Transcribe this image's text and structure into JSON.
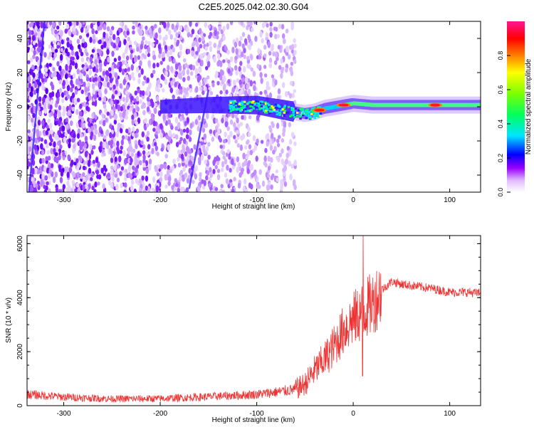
{
  "title": "C2E5.2025.042.02.30.G04",
  "chart_data": [
    {
      "type": "heatmap",
      "xlabel": "Height of straight line (km)",
      "ylabel": "Frequency (Hz)",
      "xlim": [
        -338,
        132
      ],
      "ylim": [
        -50,
        50
      ],
      "x_ticks": [
        -300,
        -200,
        -100,
        0,
        100
      ],
      "y_ticks": [
        -40,
        -20,
        0,
        20,
        40
      ],
      "colorbar": {
        "label": "Normalized spectral amplitude",
        "range": [
          0,
          1
        ],
        "ticks": [
          "0.0",
          "0.2",
          "0.4",
          "0.6",
          "0.8"
        ],
        "colormap": [
          "#ffffff",
          "#9b00ff",
          "#0000ff",
          "#00e5ff",
          "#00ff00",
          "#ffff00",
          "#ff8000",
          "#ff0000",
          "#ff1493"
        ]
      },
      "features": {
        "signal_center_line": {
          "x": [
            -200,
            -150,
            -100,
            -70,
            -50,
            -40,
            -30,
            -20,
            -10,
            0,
            20,
            60,
            100,
            132
          ],
          "y": [
            0,
            1,
            1,
            -2,
            -4,
            -3,
            -1,
            0,
            1,
            2,
            1,
            1,
            1,
            1
          ]
        },
        "peak_amplitude_x": [
          -35,
          -10,
          85
        ],
        "noise_region_x": [
          -338,
          -65
        ]
      }
    },
    {
      "type": "line",
      "xlabel": "Height of straight line (km)",
      "ylabel": "SNR (10 * v/v)",
      "xlim": [
        -338,
        132
      ],
      "ylim": [
        0,
        6300
      ],
      "x_ticks": [
        -300,
        -200,
        -100,
        0,
        100
      ],
      "y_ticks": [
        0,
        2000,
        4000,
        6000
      ],
      "series_color": "#ee3333",
      "x": [
        -338,
        -300,
        -250,
        -200,
        -170,
        -150,
        -120,
        -100,
        -80,
        -60,
        -50,
        -40,
        -30,
        -20,
        -10,
        0,
        10,
        20,
        30,
        40,
        50,
        60,
        80,
        100,
        120,
        132
      ],
      "values": [
        420,
        320,
        250,
        260,
        300,
        330,
        380,
        420,
        500,
        600,
        800,
        1300,
        1700,
        2200,
        2800,
        3200,
        3500,
        3800,
        4300,
        4600,
        4500,
        4450,
        4350,
        4200,
        4200,
        4150
      ],
      "annotations": [
        {
          "x": 10,
          "max": 6300,
          "min": 1100
        }
      ]
    }
  ]
}
